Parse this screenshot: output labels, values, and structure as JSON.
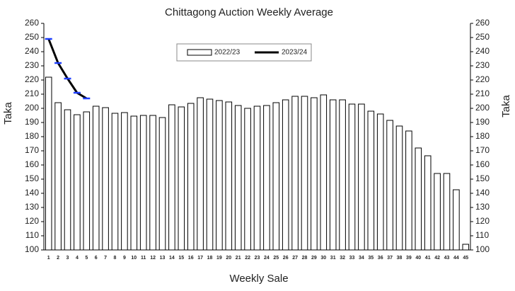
{
  "chart_data": {
    "type": "bar",
    "title": "Chittagong Auction Weekly Average",
    "xlabel": "Weekly Sale",
    "ylabel": "Taka",
    "y2label": "Taka",
    "categories": [
      "1",
      "2",
      "3",
      "4",
      "5",
      "6",
      "7",
      "8",
      "9",
      "10",
      "11",
      "12",
      "13",
      "14",
      "15",
      "16",
      "17",
      "18",
      "19",
      "20",
      "21",
      "22",
      "23",
      "24",
      "25",
      "26",
      "27",
      "28",
      "29",
      "30",
      "31",
      "32",
      "33",
      "34",
      "35",
      "36",
      "37",
      "38",
      "39",
      "40",
      "41",
      "42",
      "43",
      "44",
      "45"
    ],
    "series": [
      {
        "name": "2022/23",
        "type": "bar",
        "color": "#ffffff",
        "values": [
          222,
          204,
          199,
          195.5,
          197.5,
          201.5,
          200.5,
          196.5,
          197,
          194.5,
          195,
          195,
          193.5,
          202.5,
          201,
          203.5,
          207.5,
          206.5,
          205.5,
          204.5,
          202,
          200,
          201.5,
          202,
          204,
          206,
          208.5,
          208.5,
          207.5,
          209.5,
          206,
          206,
          203,
          203,
          198,
          196,
          191.5,
          187.5,
          184,
          172,
          166.5,
          154,
          154,
          142.5,
          104
        ]
      },
      {
        "name": "2023/24",
        "type": "line",
        "color": "#000000",
        "marker_color": "#1f3fff",
        "values": [
          249,
          232,
          221,
          211,
          207,
          null,
          null,
          null,
          null,
          null,
          null,
          null,
          null,
          null,
          null,
          null,
          null,
          null,
          null,
          null,
          null,
          null,
          null,
          null,
          null,
          null,
          null,
          null,
          null,
          null,
          null,
          null,
          null,
          null,
          null,
          null,
          null,
          null,
          null,
          null,
          null,
          null,
          null,
          null,
          null
        ]
      }
    ],
    "ylim": [
      100,
      260
    ],
    "yticks": [
      100,
      110,
      120,
      130,
      140,
      150,
      160,
      170,
      180,
      190,
      200,
      210,
      220,
      230,
      240,
      250,
      260
    ],
    "y2lim": [
      100,
      260
    ],
    "y2ticks": [
      100,
      110,
      120,
      130,
      140,
      150,
      160,
      170,
      180,
      190,
      200,
      210,
      220,
      230,
      240,
      250,
      260
    ],
    "legend": "top"
  }
}
